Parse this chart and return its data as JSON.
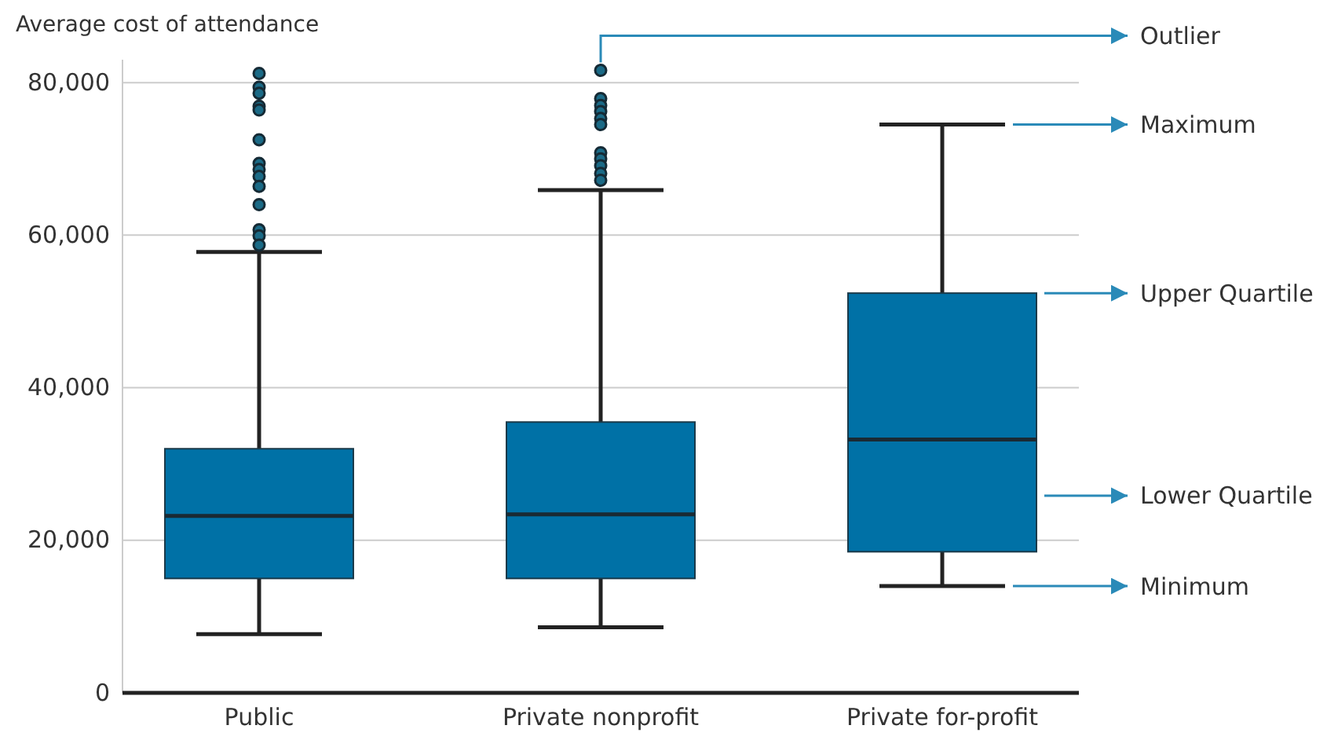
{
  "chart_data": {
    "type": "box",
    "ylabel": "Average cost of attendance",
    "categories": [
      "Public",
      "Private nonprofit",
      "Private for-profit"
    ],
    "series": [
      {
        "color": "#0071a6",
        "boxes": [
          {
            "low": 7700,
            "q1": 15000,
            "median": 23200,
            "q3": 32000,
            "high": 57800,
            "outliers": [
              81200,
              79400,
              78600,
              76900,
              76400,
              72500,
              69400,
              68600,
              67700,
              66400,
              64000,
              60700,
              59900,
              58700
            ]
          },
          {
            "low": 8600,
            "q1": 15000,
            "median": 23400,
            "q3": 35500,
            "high": 65900,
            "outliers": [
              81600,
              77900,
              77000,
              76200,
              75300,
              74500,
              70800,
              70000,
              69100,
              68100,
              67200
            ]
          },
          {
            "low": 14000,
            "q1": 18500,
            "median": 33200,
            "q3": 52400,
            "high": 74500
          }
        ]
      }
    ],
    "ylim": [
      0,
      83000
    ],
    "yticks": [
      0,
      {
        "value": 20000,
        "label": "20,000"
      },
      {
        "value": 40000,
        "label": "40,000"
      },
      {
        "value": 60000,
        "label": "60,000"
      },
      {
        "value": 80000,
        "label": "80,000"
      }
    ],
    "grid": "y",
    "annotations": [
      "Outlier",
      "Maximum",
      "Upper Quartile",
      "Lower Quartile",
      "Minimum"
    ]
  }
}
